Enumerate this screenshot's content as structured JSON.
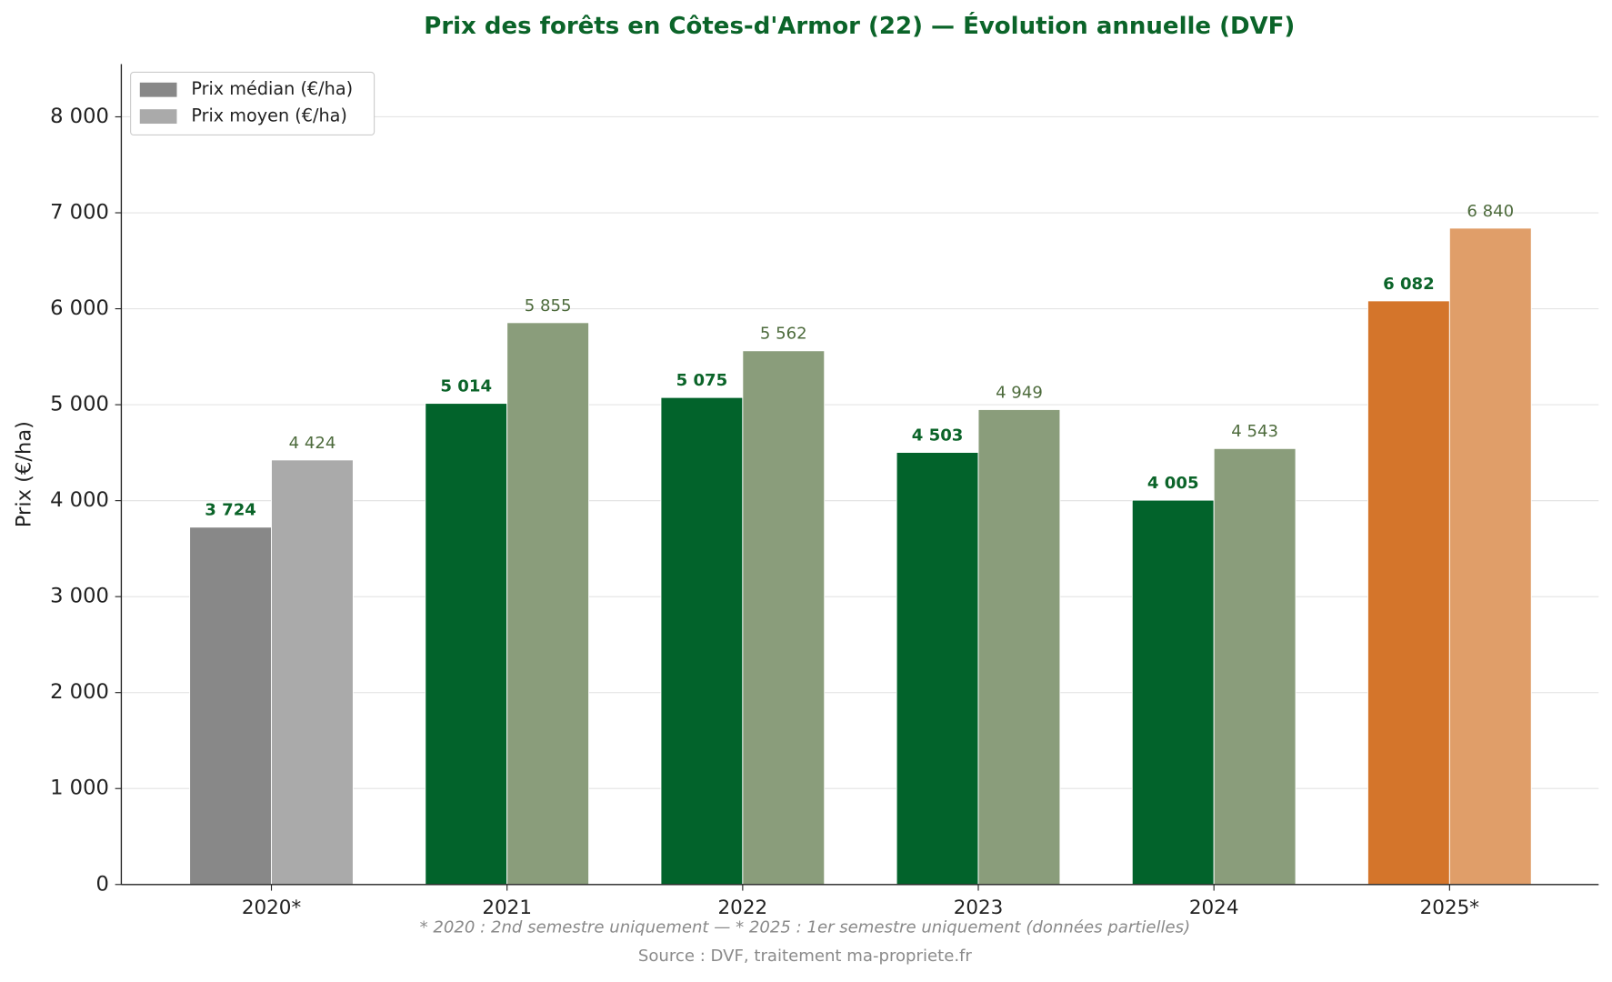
{
  "chart_data": {
    "type": "bar",
    "title": "Prix des forêts en Côtes-d'Armor (22) — Évolution annuelle (DVF)",
    "y_label": "Prix (€/ha)",
    "footnote": "* 2020 : 2nd semestre uniquement — * 2025 : 1er semestre uniquement (données partielles)",
    "source": "Source : DVF, traitement ma-propriete.fr",
    "categories": [
      "2020*",
      "2021",
      "2022",
      "2023",
      "2024",
      "2025*"
    ],
    "series": [
      {
        "name": "Prix médian (€/ha)",
        "color": "#888888",
        "label_color": "#0b6429",
        "colors": [
          "#888888",
          "#02632b",
          "#02632b",
          "#02632b",
          "#02632b",
          "#d4752b"
        ],
        "values": [
          3724,
          5014,
          5075,
          4503,
          4005,
          6082
        ],
        "value_labels": [
          "3 724",
          "5 014",
          "5 075",
          "4 503",
          "4 005",
          "6 082"
        ]
      },
      {
        "name": "Prix moyen (€/ha)",
        "color": "#aaaaaa",
        "label_color": "#4d6b3c",
        "colors": [
          "#aaaaaa",
          "#8a9d7b",
          "#8a9d7b",
          "#8a9d7b",
          "#8a9d7b",
          "#e09e69"
        ],
        "values": [
          4424,
          5855,
          5562,
          4949,
          4543,
          6840
        ],
        "value_labels": [
          "4 424",
          "5 855",
          "5 562",
          "4 949",
          "4 543",
          "6 840"
        ]
      }
    ],
    "ylim": [
      0,
      8550
    ],
    "yticks": [
      0,
      {
        "value": 1000,
        "label": "1 000"
      },
      {
        "value": 2000,
        "label": "2 000"
      },
      {
        "value": 3000,
        "label": "3 000"
      },
      {
        "value": 4000,
        "label": "4 000"
      },
      {
        "value": 5000,
        "label": "5 000"
      },
      {
        "value": 6000,
        "label": "6 000"
      },
      {
        "value": 7000,
        "label": "7 000"
      },
      {
        "value": 8000,
        "label": "8 000"
      }
    ],
    "grid": true,
    "legend": "upper left"
  }
}
